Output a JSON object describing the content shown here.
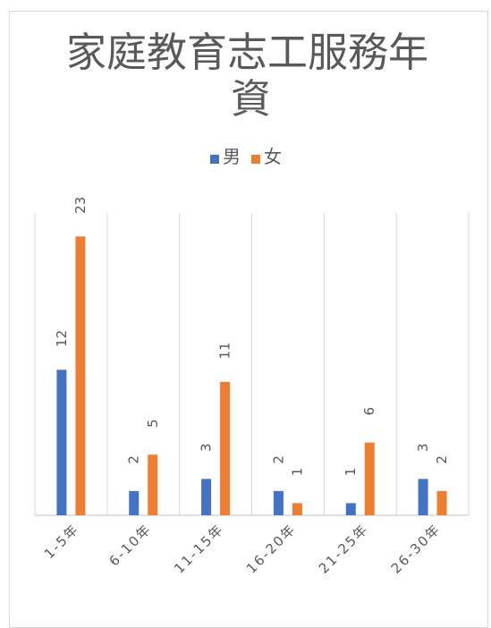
{
  "chart_data": {
    "type": "bar",
    "title_lines": [
      "家庭教育志工服務年",
      "資"
    ],
    "categories": [
      "1-5年",
      "6-10年",
      "11-15年",
      "16-20年",
      "21-25年",
      "26-30年"
    ],
    "series": [
      {
        "name": "男",
        "color": "#4472c4",
        "values": [
          12,
          2,
          3,
          2,
          1,
          3
        ]
      },
      {
        "name": "女",
        "color": "#ed7d31",
        "values": [
          23,
          5,
          11,
          1,
          6,
          2
        ]
      }
    ],
    "ylim": [
      0,
      25
    ],
    "grid": "vertical category separators",
    "legend": "top",
    "data_labels": true
  }
}
